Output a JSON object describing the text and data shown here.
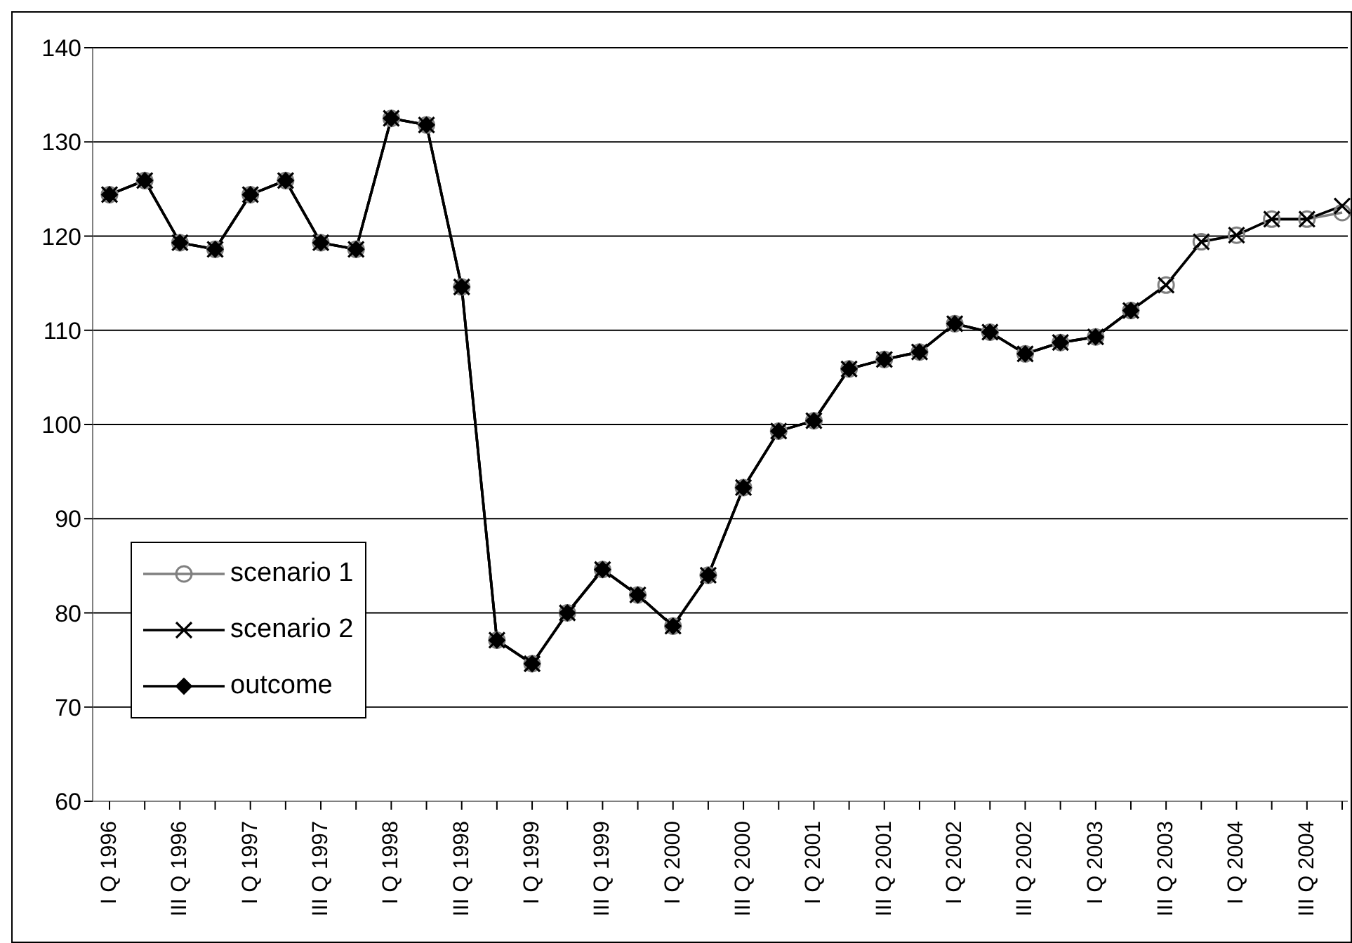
{
  "chart_data": {
    "type": "line",
    "categories": [
      "I Q 1996",
      null,
      "III Q 1996",
      null,
      "I Q 1997",
      null,
      "III Q 1997",
      null,
      "I Q 1998",
      null,
      "III Q 1998",
      null,
      "I Q 1999",
      null,
      "III Q 1999",
      null,
      "I Q 2000",
      null,
      "III Q 2000",
      null,
      "I Q 2001",
      null,
      "III Q 2001",
      null,
      "I Q 2002",
      null,
      "III Q 2002",
      null,
      "I Q 2003",
      null,
      "III Q 2003",
      null,
      "I Q 2004",
      null,
      "III Q 2004",
      null
    ],
    "series": [
      {
        "name": "scenario 1",
        "color": "#808080",
        "marker": "circle",
        "values": [
          124.4,
          125.9,
          119.3,
          118.6,
          124.4,
          125.9,
          119.3,
          118.6,
          132.5,
          131.8,
          114.6,
          77.1,
          74.6,
          80.0,
          84.6,
          81.9,
          78.6,
          84.0,
          93.3,
          99.3,
          100.4,
          105.9,
          106.9,
          107.7,
          110.7,
          109.8,
          107.5,
          108.7,
          109.3,
          112.1,
          114.8,
          119.4,
          120.1,
          121.8,
          121.8,
          122.5
        ]
      },
      {
        "name": "scenario 2",
        "color": "#000000",
        "marker": "cross",
        "values": [
          124.4,
          125.9,
          119.3,
          118.6,
          124.4,
          125.9,
          119.3,
          118.6,
          132.5,
          131.8,
          114.6,
          77.1,
          74.6,
          80.0,
          84.6,
          81.9,
          78.6,
          84.0,
          93.3,
          99.3,
          100.4,
          105.9,
          106.9,
          107.7,
          110.7,
          109.8,
          107.5,
          108.7,
          109.3,
          112.1,
          114.8,
          119.4,
          120.1,
          121.8,
          121.8,
          123.2
        ]
      },
      {
        "name": "outcome",
        "color": "#000000",
        "marker": "diamond",
        "values": [
          124.4,
          125.9,
          119.3,
          118.6,
          124.4,
          125.9,
          119.3,
          118.6,
          132.5,
          131.8,
          114.6,
          77.1,
          74.6,
          80.0,
          84.6,
          81.9,
          78.6,
          84.0,
          93.3,
          99.3,
          100.4,
          105.9,
          106.9,
          107.7,
          110.7,
          109.8,
          107.5,
          108.7,
          109.3,
          112.1,
          null,
          null,
          null,
          null,
          null,
          null
        ]
      }
    ],
    "ylim": [
      60,
      140
    ],
    "yticks": [
      60,
      70,
      80,
      90,
      100,
      110,
      120,
      130,
      140
    ],
    "grid": "y",
    "legend": "left",
    "line_style": "solid"
  }
}
